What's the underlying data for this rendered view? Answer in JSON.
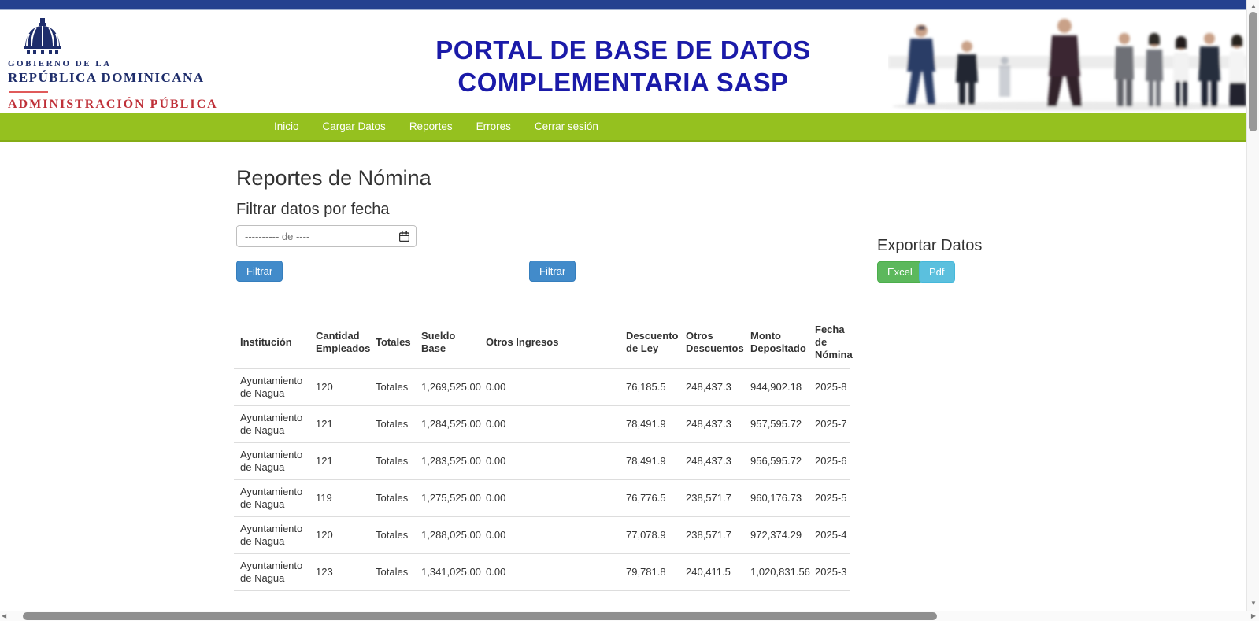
{
  "header": {
    "logo": {
      "line1": "GOBIERNO DE LA",
      "line2": "REPÚBLICA DOMINICANA",
      "line3": "ADMINISTRACIÓN PÚBLICA"
    },
    "title_line1": "PORTAL DE BASE DE DATOS",
    "title_line2": "COMPLEMENTARIA SASP"
  },
  "nav": {
    "items": [
      "Inicio",
      "Cargar Datos",
      "Reportes",
      "Errores",
      "Cerrar sesión"
    ]
  },
  "main": {
    "page_title": "Reportes de Nómina",
    "filter": {
      "heading": "Filtrar datos por fecha",
      "date_placeholder": "---------- de ----",
      "filter_button_label": "Filtrar",
      "filter_button2_label": "Filtrar"
    },
    "export": {
      "heading": "Exportar Datos",
      "excel_label": "Excel",
      "pdf_label": "Pdf"
    }
  },
  "table": {
    "columns": [
      "Institución",
      "Cantidad Empleados",
      "Totales",
      "Sueldo Base",
      "Otros Ingresos",
      "Descuento de Ley",
      "Otros Descuentos",
      "Monto Depositado",
      "Fecha de Nómina"
    ],
    "rows": [
      [
        "Ayuntamiento de Nagua",
        "120",
        "Totales",
        "1,269,525.00",
        "0.00",
        "76,185.5",
        "248,437.3",
        "944,902.18",
        "2025-8"
      ],
      [
        "Ayuntamiento de Nagua",
        "121",
        "Totales",
        "1,284,525.00",
        "0.00",
        "78,491.9",
        "248,437.3",
        "957,595.72",
        "2025-7"
      ],
      [
        "Ayuntamiento de Nagua",
        "121",
        "Totales",
        "1,283,525.00",
        "0.00",
        "78,491.9",
        "248,437.3",
        "956,595.72",
        "2025-6"
      ],
      [
        "Ayuntamiento de Nagua",
        "119",
        "Totales",
        "1,275,525.00",
        "0.00",
        "76,776.5",
        "238,571.7",
        "960,176.73",
        "2025-5"
      ],
      [
        "Ayuntamiento de Nagua",
        "120",
        "Totales",
        "1,288,025.00",
        "0.00",
        "77,078.9",
        "238,571.7",
        "972,374.29",
        "2025-4"
      ],
      [
        "Ayuntamiento de Nagua",
        "123",
        "Totales",
        "1,341,025.00",
        "0.00",
        "79,781.8",
        "240,411.5",
        "1,020,831.56",
        "2025-3"
      ]
    ]
  },
  "icons": {
    "date_input": "calendar-icon",
    "logo": "national-palace-dome-icon"
  },
  "glyphs": {
    "scroll_up": "▲",
    "scroll_down": "▼",
    "scroll_left": "◀",
    "scroll_right": "▶"
  },
  "colors": {
    "topbar_navy": "#24418f",
    "title_blue": "#1a1aa8",
    "nav_green": "#95c11f",
    "primary_button": "#428bca",
    "excel_button": "#5cb85c",
    "pdf_button": "#5bc0de",
    "logo_navy": "#1e2d6b",
    "logo_red": "#bf3038",
    "table_border": "#dddddd",
    "text": "#333333"
  }
}
